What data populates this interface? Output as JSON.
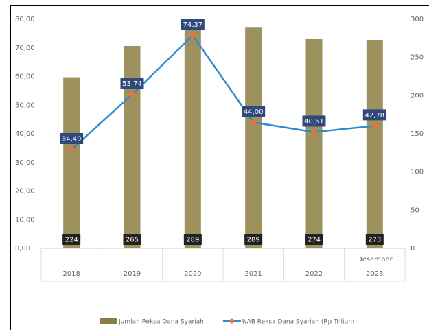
{
  "chart_data": {
    "type": "bar-line",
    "categories": [
      "2018",
      "2019",
      "2020",
      "2021",
      "2022",
      "2023"
    ],
    "annotation": "Desember",
    "series": [
      {
        "name": "Jumlah Reksa Dana Syariah",
        "type": "bar",
        "axis": "y2",
        "color": "#8c7e42",
        "values": [
          224,
          265,
          289,
          289,
          274,
          273
        ]
      },
      {
        "name": "NAB Reksa Dana Syariah (Rp Triliun)",
        "type": "line",
        "axis": "y",
        "color": "#2f8ad0",
        "marker_color": "#e8743b",
        "values": [
          34.49,
          53.74,
          74.37,
          44.0,
          40.61,
          42.78
        ],
        "value_labels": [
          "34,49",
          "53,74",
          "74,37",
          "44,00",
          "40,61",
          "42,78"
        ]
      }
    ],
    "ylim": [
      0,
      80
    ],
    "yticks": [
      {
        "value": 0,
        "label": "0,00"
      },
      {
        "value": 10,
        "label": "10,00"
      },
      {
        "value": 20,
        "label": "20,00"
      },
      {
        "value": 30,
        "label": "30,00"
      },
      {
        "value": 40,
        "label": "40,00"
      },
      {
        "value": 50,
        "label": "50,00"
      },
      {
        "value": 60,
        "label": "60,00"
      },
      {
        "value": 70,
        "label": "70,00"
      },
      {
        "value": 80,
        "label": "80,00"
      }
    ],
    "y2lim": [
      0,
      300
    ],
    "y2ticks": [
      0,
      50,
      100,
      150,
      200,
      250,
      300
    ],
    "legend": "bottom"
  }
}
